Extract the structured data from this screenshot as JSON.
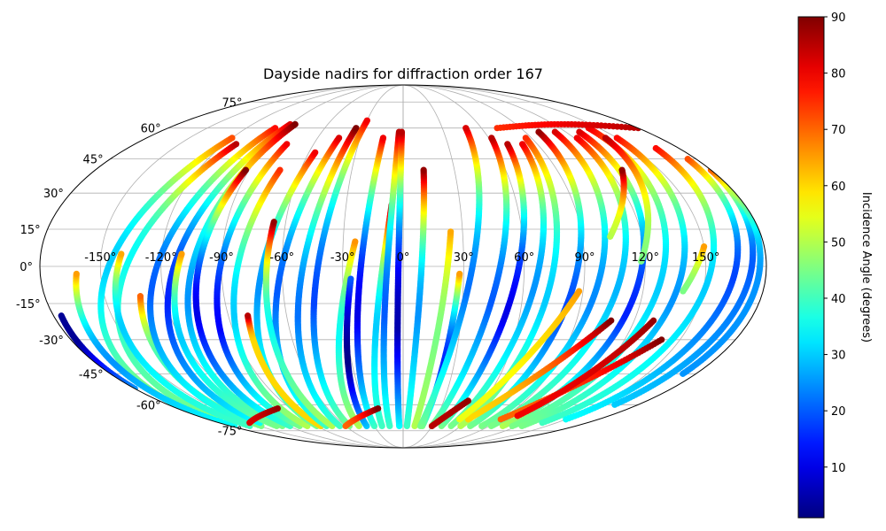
{
  "chart_data": {
    "type": "scatter",
    "projection": "mollweide",
    "title": "Dayside nadirs for diffraction order 167",
    "grid": true,
    "colormap": "jet",
    "color_range": [
      1,
      90
    ],
    "colorbar": {
      "label": "Incidence Angle (degrees)",
      "ticks": [
        10,
        20,
        30,
        40,
        50,
        60,
        70,
        80,
        90
      ],
      "placement": "right"
    },
    "longitude_ticks": [
      -150,
      -120,
      -90,
      -60,
      -30,
      0,
      30,
      60,
      90,
      120,
      150
    ],
    "longitude_tick_labels": [
      "-150°",
      "-120°",
      "-90°",
      "-60°",
      "-30°",
      "0°",
      "30°",
      "60°",
      "90°",
      "120°",
      "150°"
    ],
    "latitude_ticks": [
      -75,
      -60,
      -45,
      -30,
      -15,
      0,
      15,
      30,
      45,
      60,
      75
    ],
    "latitude_tick_labels": [
      "-75°",
      "-60°",
      "-45°",
      "-30°",
      "-15°",
      "0°",
      "15°",
      "30°",
      "45°",
      "60°",
      "75°"
    ],
    "tracks_note": "Near-polar orbit ground tracks; each track runs from the south pole edge northward, colored by incidence angle",
    "tracks": [
      {
        "lon_south": -178,
        "lon_north": -120,
        "lat_start": -68,
        "lat_end": 55,
        "inc_south": 50,
        "inc_min": 30,
        "inc_north": 72,
        "min_lat": 0
      },
      {
        "lon_south": -170,
        "lon_north": -112,
        "lat_start": -68,
        "lat_end": 52,
        "inc_south": 45,
        "inc_min": 35,
        "inc_north": 85,
        "min_lat": 5
      },
      {
        "lon_south": -176,
        "lon_north": -162,
        "lat_start": -72,
        "lat_end": -3,
        "inc_south": 35,
        "inc_min": 25,
        "inc_north": 65,
        "min_lat": -40
      },
      {
        "lon_south": -180,
        "lon_north": -176,
        "lat_start": -52,
        "lat_end": -20,
        "inc_south": 25,
        "inc_min": 3,
        "inc_north": 3,
        "min_lat": -30
      },
      {
        "lon_south": -160,
        "lon_north": -140,
        "lat_start": -72,
        "lat_end": 5,
        "inc_south": 40,
        "inc_min": 30,
        "inc_north": 64,
        "min_lat": -25
      },
      {
        "lon_south": -148,
        "lon_north": -132,
        "lat_start": -72,
        "lat_end": -12,
        "inc_south": 45,
        "inc_min": 40,
        "inc_north": 70,
        "min_lat": -40
      },
      {
        "lon_south": -150,
        "lon_north": -98,
        "lat_start": -70,
        "lat_end": 60,
        "inc_south": 40,
        "inc_min": 20,
        "inc_north": 78,
        "min_lat": -10
      },
      {
        "lon_south": -140,
        "lon_north": -90,
        "lat_start": -70,
        "lat_end": 62,
        "inc_south": 35,
        "inc_min": 15,
        "inc_north": 82,
        "min_lat": -15
      },
      {
        "lon_south": -132,
        "lon_north": -110,
        "lat_start": -72,
        "lat_end": 5,
        "inc_south": 45,
        "inc_min": 30,
        "inc_north": 65,
        "min_lat": -30
      },
      {
        "lon_south": -126,
        "lon_north": -86,
        "lat_start": -72,
        "lat_end": 62,
        "inc_south": 45,
        "inc_min": 25,
        "inc_north": 90,
        "min_lat": -15
      },
      {
        "lon_south": -118,
        "lon_north": -92,
        "lat_start": -72,
        "lat_end": 40,
        "inc_south": 40,
        "inc_min": 10,
        "inc_north": 90,
        "min_lat": -20
      },
      {
        "lon_south": -108,
        "lon_north": -78,
        "lat_start": -72,
        "lat_end": 52,
        "inc_south": 45,
        "inc_min": 12,
        "inc_north": 80,
        "min_lat": -25
      },
      {
        "lon_south": -100,
        "lon_north": -72,
        "lat_start": -72,
        "lat_end": 40,
        "inc_south": 50,
        "inc_min": 30,
        "inc_north": 75,
        "min_lat": -20
      },
      {
        "lon_south": -90,
        "lon_north": -56,
        "lat_start": -72,
        "lat_end": 48,
        "inc_south": 45,
        "inc_min": 25,
        "inc_north": 80,
        "min_lat": -10
      },
      {
        "lon_south": -86,
        "lon_north": -80,
        "lat_start": -72,
        "lat_end": -20,
        "inc_south": 60,
        "inc_min": 60,
        "inc_north": 85,
        "min_lat": -30
      },
      {
        "lon_south": -80,
        "lon_north": -45,
        "lat_start": -72,
        "lat_end": 55,
        "inc_south": 40,
        "inc_min": 20,
        "inc_north": 82,
        "min_lat": -10
      },
      {
        "lon_south": -74,
        "lon_north": -66,
        "lat_start": -72,
        "lat_end": 18,
        "inc_south": 50,
        "inc_min": 35,
        "inc_north": 88,
        "min_lat": -25
      },
      {
        "lon_south": -66,
        "lon_north": -36,
        "lat_start": -72,
        "lat_end": 60,
        "inc_south": 40,
        "inc_min": 22,
        "inc_north": 90,
        "min_lat": -20
      },
      {
        "lon_south": -56,
        "lon_north": -30,
        "lat_start": -72,
        "lat_end": 64,
        "inc_south": 45,
        "inc_min": 18,
        "inc_north": 80,
        "min_lat": -15
      },
      {
        "lon_south": -46,
        "lon_north": -24,
        "lat_start": -72,
        "lat_end": 10,
        "inc_south": 50,
        "inc_min": 35,
        "inc_north": 66,
        "min_lat": -30
      },
      {
        "lon_south": -38,
        "lon_north": -26,
        "lat_start": -72,
        "lat_end": -5,
        "inc_south": 30,
        "inc_min": 2,
        "inc_north": 20,
        "min_lat": -40
      },
      {
        "lon_south": -30,
        "lon_north": -14,
        "lat_start": -72,
        "lat_end": 55,
        "inc_south": 40,
        "inc_min": 10,
        "inc_north": 80,
        "min_lat": -20
      },
      {
        "lon_south": -22,
        "lon_north": -6,
        "lat_start": -72,
        "lat_end": 25,
        "inc_south": 40,
        "inc_min": 30,
        "inc_north": 88,
        "min_lat": -25
      },
      {
        "lon_south": -14,
        "lon_north": -3,
        "lat_start": -72,
        "lat_end": 58,
        "inc_south": 40,
        "inc_min": 20,
        "inc_north": 85,
        "min_lat": -20
      },
      {
        "lon_south": -4,
        "lon_north": -1,
        "lat_start": -72,
        "lat_end": 58,
        "inc_south": 35,
        "inc_min": 5,
        "inc_north": 85,
        "min_lat": -25
      },
      {
        "lon_south": 4,
        "lon_north": 12,
        "lat_start": -72,
        "lat_end": 40,
        "inc_south": 40,
        "inc_min": 25,
        "inc_north": 88,
        "min_lat": -20
      },
      {
        "lon_south": 12,
        "lon_north": 24,
        "lat_start": -72,
        "lat_end": 14,
        "inc_south": 50,
        "inc_min": 45,
        "inc_north": 64,
        "min_lat": -30
      },
      {
        "lon_south": 20,
        "lon_north": 28,
        "lat_start": -72,
        "lat_end": -3,
        "inc_south": 45,
        "inc_min": 15,
        "inc_north": 65,
        "min_lat": -40
      },
      {
        "lon_south": 18,
        "lon_north": 48,
        "lat_start": -72,
        "lat_end": 60,
        "inc_south": 45,
        "inc_min": 22,
        "inc_north": 82,
        "min_lat": -10
      },
      {
        "lon_south": 30,
        "lon_north": 62,
        "lat_start": -72,
        "lat_end": 55,
        "inc_south": 45,
        "inc_min": 20,
        "inc_north": 85,
        "min_lat": -15
      },
      {
        "lon_south": 40,
        "lon_north": 70,
        "lat_start": -72,
        "lat_end": 52,
        "inc_south": 45,
        "inc_min": 10,
        "inc_north": 85,
        "min_lat": -20
      },
      {
        "lon_south": 50,
        "lon_north": 80,
        "lat_start": -72,
        "lat_end": 52,
        "inc_south": 45,
        "inc_min": 25,
        "inc_north": 80,
        "min_lat": -10
      },
      {
        "lon_south": 60,
        "lon_north": 86,
        "lat_start": -72,
        "lat_end": 55,
        "inc_south": 50,
        "inc_min": 30,
        "inc_north": 75,
        "min_lat": -15
      },
      {
        "lon_south": 70,
        "lon_north": 100,
        "lat_start": -72,
        "lat_end": 58,
        "inc_south": 45,
        "inc_min": 18,
        "inc_north": 88,
        "min_lat": -20
      },
      {
        "lon_south": 82,
        "lon_north": 112,
        "lat_start": -72,
        "lat_end": 58,
        "inc_south": 45,
        "inc_min": 24,
        "inc_north": 82,
        "min_lat": -15
      },
      {
        "lon_south": 92,
        "lon_north": 122,
        "lat_start": -72,
        "lat_end": 55,
        "inc_south": 45,
        "inc_min": 28,
        "inc_north": 80,
        "min_lat": -10
      },
      {
        "lon_south": 104,
        "lon_north": 130,
        "lat_start": -72,
        "lat_end": 58,
        "inc_south": 50,
        "inc_min": 15,
        "inc_north": 82,
        "min_lat": -20
      },
      {
        "lon_south": 114,
        "lon_north": 142,
        "lat_start": -72,
        "lat_end": 60,
        "inc_south": 45,
        "inc_min": 30,
        "inc_north": 80,
        "min_lat": -10
      },
      {
        "lon_south": 124,
        "lon_north": 150,
        "lat_start": -72,
        "lat_end": 55,
        "inc_south": 45,
        "inc_min": 25,
        "inc_north": 78,
        "min_lat": -15
      },
      {
        "lon_south": 136,
        "lon_north": 165,
        "lat_start": -70,
        "lat_end": 50,
        "inc_south": 40,
        "inc_min": 30,
        "inc_north": 78,
        "min_lat": -10
      },
      {
        "lon_south": 150,
        "lon_north": 175,
        "lat_start": -68,
        "lat_end": 45,
        "inc_south": 35,
        "inc_min": 18,
        "inc_north": 72,
        "min_lat": -5
      },
      {
        "lon_south": 162,
        "lon_north": 180,
        "lat_start": -60,
        "lat_end": 40,
        "inc_south": 30,
        "inc_min": 20,
        "inc_north": 70,
        "min_lat": 0
      },
      {
        "lon_south": 172,
        "lon_north": 180,
        "lat_start": -45,
        "lat_end": 30,
        "inc_south": 25,
        "inc_min": 25,
        "inc_north": 50,
        "min_lat": -5
      },
      {
        "lon_south": 104,
        "lon_north": 128,
        "lat_start": 12,
        "lat_end": 40,
        "inc_south": 50,
        "inc_min": 50,
        "inc_north": 88,
        "min_lat": 10
      },
      {
        "lon_south": 118,
        "lon_north": 142,
        "lat_start": 2,
        "lat_end": 55,
        "inc_south": 45,
        "inc_min": 45,
        "inc_north": 85,
        "min_lat": 0
      },
      {
        "lon_south": 140,
        "lon_north": 150,
        "lat_start": -10,
        "lat_end": 8,
        "inc_south": 45,
        "inc_min": 45,
        "inc_north": 65,
        "min_lat": -10
      },
      {
        "lon_south": 60,
        "lon_north": 108,
        "lat_start": -68,
        "lat_end": -22,
        "inc_south": 60,
        "inc_min": 60,
        "inc_north": 90,
        "min_lat": -68
      },
      {
        "lon_south": 52,
        "lon_north": 88,
        "lat_start": -68,
        "lat_end": -10,
        "inc_south": 55,
        "inc_min": 55,
        "inc_north": 65,
        "min_lat": -68
      },
      {
        "lon_south": 90,
        "lon_north": 140,
        "lat_start": -68,
        "lat_end": -30,
        "inc_south": 70,
        "inc_min": 70,
        "inc_north": 90,
        "min_lat": -68
      },
      {
        "lon_south": 100,
        "lon_north": 130,
        "lat_start": -66,
        "lat_end": -22,
        "inc_south": 80,
        "inc_min": 80,
        "inc_north": 88,
        "min_lat": -66
      },
      {
        "lon_south": 30,
        "lon_north": 48,
        "lat_start": -72,
        "lat_end": -58,
        "inc_south": 85,
        "inc_min": 85,
        "inc_north": 88,
        "min_lat": -72
      },
      {
        "lon_south": -150,
        "lon_north": -100,
        "lat_start": -70,
        "lat_end": -62,
        "inc_south": 82,
        "inc_min": 82,
        "inc_north": 88,
        "min_lat": -70
      },
      {
        "lon_south": -60,
        "lon_north": -20,
        "lat_start": -72,
        "lat_end": -62,
        "inc_south": 70,
        "inc_min": 70,
        "inc_north": 90,
        "min_lat": -72
      },
      {
        "lon_south": 72,
        "lon_north": 180,
        "lat_start": 60,
        "lat_end": 60,
        "inc_south": 75,
        "inc_min": 75,
        "inc_north": 85,
        "min_lat": 60
      }
    ]
  }
}
